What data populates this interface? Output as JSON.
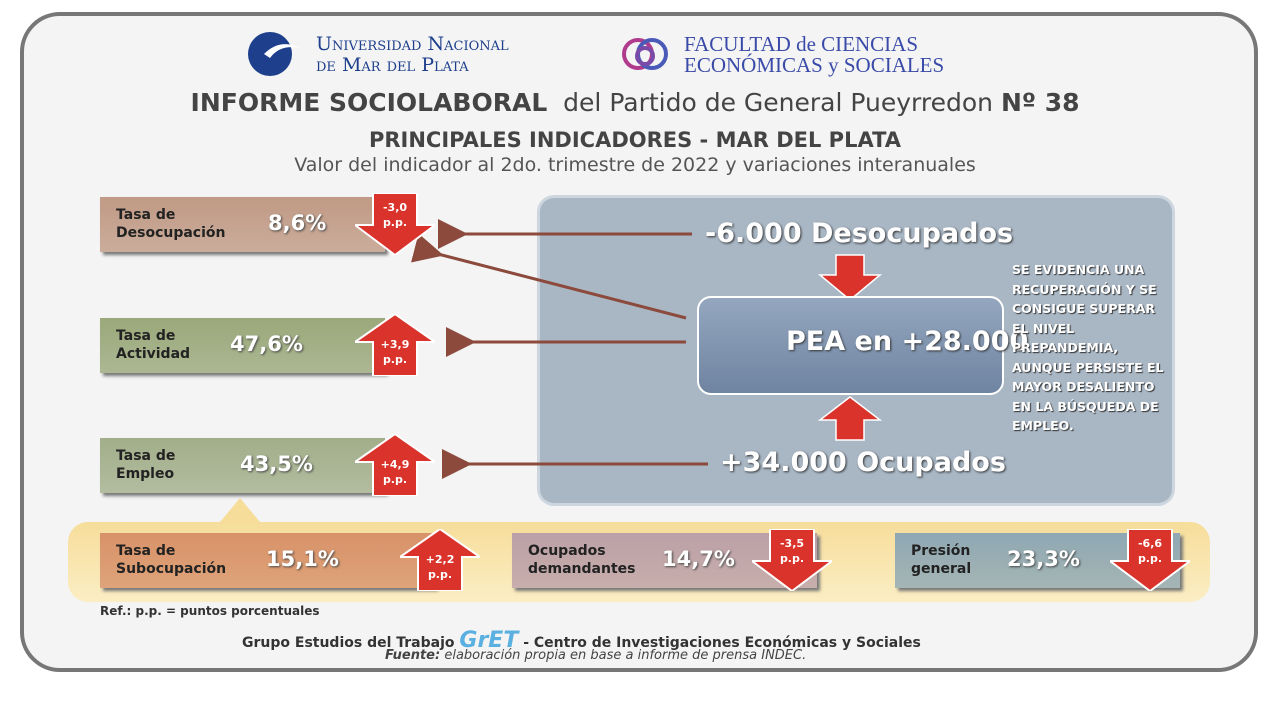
{
  "header": {
    "university": [
      "Universidad Nacional",
      "de Mar del Plata"
    ],
    "faculty": [
      "FACULTAD de CIENCIAS",
      "ECONÓMICAS y SOCIALES"
    ],
    "title": "INFORME SOCIOLABORAL",
    "title_rest": "del Partido de General Pueyrredon",
    "number": "Nº 38",
    "subtitle": "PRINCIPALES INDICADORES - MAR DEL PLATA",
    "description": "Valor del indicador al 2do. trimestre de 2022 y variaciones interanuales"
  },
  "indicators": [
    {
      "label": [
        "Tasa de",
        "Desocupación"
      ],
      "value": "8,6%",
      "change": [
        "-3,0",
        "p.p."
      ]
    },
    {
      "label": [
        "Tasa de",
        "Actividad"
      ],
      "value": "47,6%",
      "change": [
        "+3,9",
        "p.p."
      ]
    },
    {
      "label": [
        "Tasa de",
        "Empleo"
      ],
      "value": "43,5%",
      "change": [
        "+4,9",
        "p.p."
      ]
    },
    {
      "label": [
        "Tasa de",
        "Subocupación"
      ],
      "value": "15,1%",
      "change": [
        "+2,2",
        "p.p."
      ]
    },
    {
      "label": [
        "Ocupados",
        "demandantes"
      ],
      "value": "14,7%",
      "change": [
        "-3,5",
        "p.p."
      ]
    },
    {
      "label": [
        "Presión",
        "general"
      ],
      "value": "23,3%",
      "change": [
        "-6,6",
        "p.p."
      ]
    }
  ],
  "center": {
    "desocupados": "-6.000 Desocupados",
    "pea": "PEA en +28.000",
    "ocupados": "+34.000 Ocupados",
    "note": "SE EVIDENCIA UNA RECUPERACIÓN Y SE CONSIGUE SUPERAR EL NIVEL PREPANDEMIA, AUNQUE PERSISTE EL MAYOR DESALIENTO EN LA BÚSQUEDA DE EMPLEO."
  },
  "footer": {
    "ref": "Ref.: p.p. = puntos porcentuales",
    "group": "Grupo Estudios del Trabajo",
    "logo": "GrET",
    "center": "- Centro de Investigaciones Económicas y Sociales",
    "source_label": "Fuente:",
    "source": "elaboración propia en base a informe de prensa INDEC."
  }
}
